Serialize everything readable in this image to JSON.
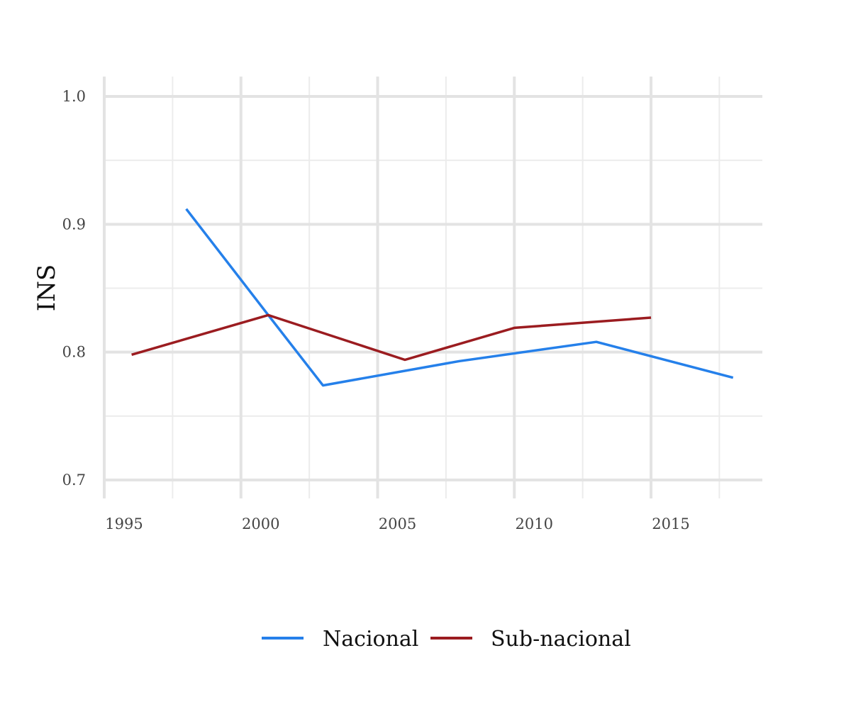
{
  "chart_data": {
    "type": "line",
    "title": "",
    "xlabel": "",
    "ylabel": "INS",
    "xlim": [
      1994.5,
      2018.6
    ],
    "ylim": [
      0.685,
      1.015
    ],
    "x_ticks": [
      1995,
      2000,
      2005,
      2010,
      2015
    ],
    "x_tick_labels": [
      "1995",
      "2000",
      "2005",
      "2010",
      "2015"
    ],
    "y_ticks": [
      0.7,
      0.8,
      0.9,
      1.0
    ],
    "y_tick_labels": [
      "0.7",
      "0.8",
      "0.9",
      "1.0"
    ],
    "grid": true,
    "legend": "bottom",
    "series": [
      {
        "name": "Nacional",
        "color": "#2580ea",
        "x": [
          1998,
          2001,
          2003,
          2008,
          2013,
          2018
        ],
        "y": [
          0.912,
          0.829,
          0.774,
          0.793,
          0.808,
          0.78
        ]
      },
      {
        "name": "Sub-nacional",
        "color": "#9b1c20",
        "x": [
          1996,
          2001,
          2006,
          2010,
          2015
        ],
        "y": [
          0.798,
          0.829,
          0.794,
          0.819,
          0.827
        ]
      }
    ]
  }
}
